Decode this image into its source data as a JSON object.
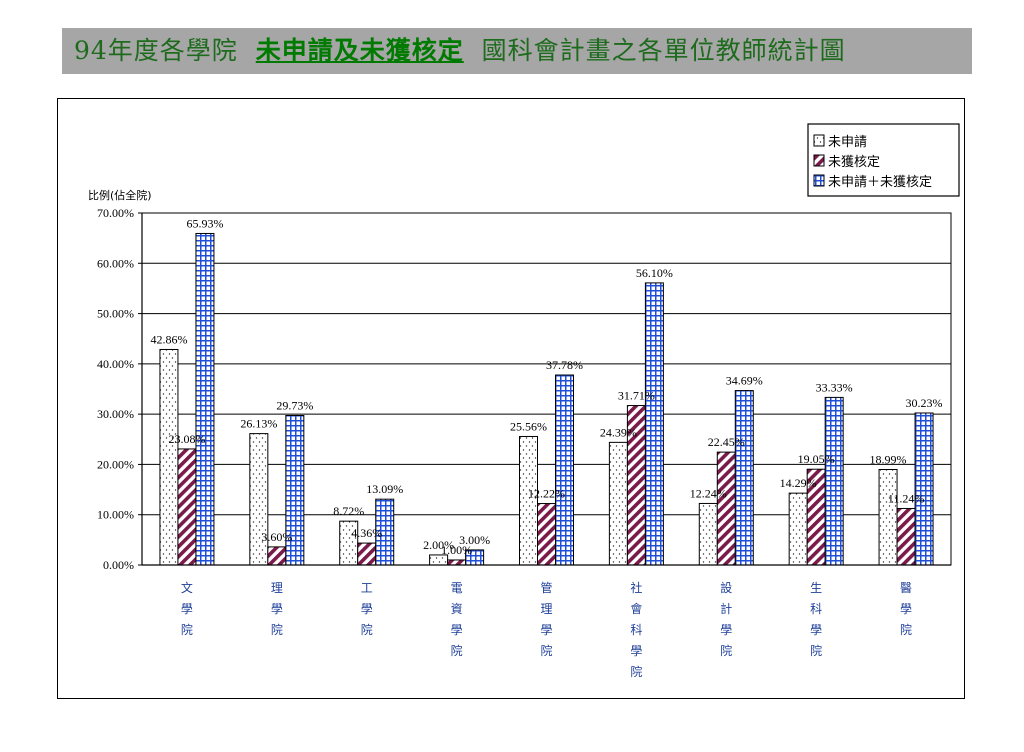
{
  "title": {
    "prefix": "94年度各學院",
    "highlight": "未申請及未獲核定",
    "suffix": "國科會計畫之各單位教師統計圖"
  },
  "chart_data": {
    "type": "bar",
    "ylabel": "比例(佔全院)",
    "ylim": [
      0,
      70
    ],
    "y_ticks": [
      "0.00%",
      "10.00%",
      "20.00%",
      "30.00%",
      "40.00%",
      "50.00%",
      "60.00%",
      "70.00%"
    ],
    "categories": [
      "文學院",
      "理學院",
      "工學院",
      "電資學院",
      "管理學院",
      "社會科學院",
      "設計學院",
      "生科學院",
      "醫學院"
    ],
    "grid": true,
    "legend_position": "top-right",
    "series": [
      {
        "name": "未申請",
        "color": "#ffffff",
        "pattern": "dots",
        "values": [
          42.86,
          26.13,
          8.72,
          2.0,
          25.56,
          24.39,
          12.24,
          14.29,
          18.99
        ],
        "labels": [
          "42.86%",
          "26.13%",
          "8.72%",
          "2.00%",
          "25.56%",
          "24.39%",
          "12.24%",
          "14.29%",
          "18.99%"
        ]
      },
      {
        "name": "未獲核定",
        "color": "#7a1a4a",
        "pattern": "diagonal",
        "values": [
          23.08,
          3.6,
          4.36,
          1.0,
          12.22,
          31.71,
          22.45,
          19.05,
          11.24
        ],
        "labels": [
          "23.08%",
          "3.60%",
          "4.36%",
          "1.00%",
          "12.22%",
          "31.71%",
          "22.45%",
          "19.05%",
          "11.24%"
        ]
      },
      {
        "name": "未申請＋未獲核定",
        "color": "#1f4fd6",
        "pattern": "grid",
        "values": [
          65.93,
          29.73,
          13.09,
          3.0,
          37.78,
          56.1,
          34.69,
          33.33,
          30.23
        ],
        "labels": [
          "65.93%",
          "29.73%",
          "13.09%",
          "3.00%",
          "37.78%",
          "56.10%",
          "34.69%",
          "33.33%",
          "30.23%"
        ]
      }
    ]
  }
}
